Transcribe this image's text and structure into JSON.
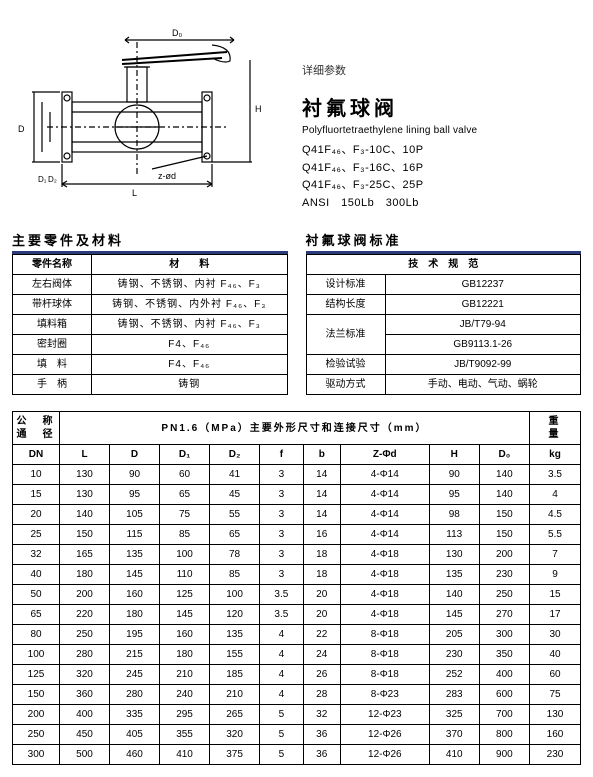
{
  "drawing": {
    "labels": {
      "D0": "D₀",
      "H": "H",
      "D": "D",
      "D1": "D₁",
      "D2": "D₂",
      "zphi": "z-ød",
      "L": "L"
    }
  },
  "header": {
    "detail_label": "详细参数",
    "title_cn": "衬氟球阀",
    "title_en": "Polyfluortetraethylene lining ball valve",
    "specs": [
      "Q41F₄₆、F₃-10C、10P",
      "Q41F₄₆、F₃-16C、16P",
      "Q41F₄₆、F₃-25C、25P",
      "ANSI　150Lb　300Lb"
    ]
  },
  "parts_section": {
    "title": "主要零件及材料",
    "head_name": "零件名称",
    "head_mat": "材　　料",
    "rows": [
      {
        "name": "左右阀体",
        "mat": "铸钢、不锈钢、内衬 F₄₆、F₃"
      },
      {
        "name": "带杆球体",
        "mat": "铸钢、不锈钢、内外衬 F₄₆、F₃"
      },
      {
        "name": "填料箱",
        "mat": "铸钢、不锈钢、内衬 F₄₆、F₃"
      },
      {
        "name": "密封圈",
        "mat": "F4、F₄₆"
      },
      {
        "name": "填　料",
        "mat": "F4、F₄₆"
      },
      {
        "name": "手　柄",
        "mat": "铸钢"
      }
    ]
  },
  "std_section": {
    "title": "衬氟球阀标准",
    "head_spec": "技　术　规　范",
    "rows": [
      {
        "k": "设计标准",
        "v": "GB12237"
      },
      {
        "k": "结构长度",
        "v": "GB12221"
      },
      {
        "k": "法兰标准",
        "v1": "JB/T79-94",
        "v2": "GB9113.1-26",
        "rowspan": 2
      },
      {
        "k": "检验试验",
        "v": "JB/T9092-99"
      },
      {
        "k": "驱动方式",
        "v": "手动、电动、气动、蜗轮"
      }
    ]
  },
  "dim_section": {
    "head_left": "公　称\n通　径",
    "head_mid": "PN1.6（MPa）主要外形尺寸和连接尺寸（mm）",
    "head_right": "重　　量",
    "cols": [
      "DN",
      "L",
      "D",
      "D₁",
      "D₂",
      "f",
      "b",
      "Z-Φd",
      "H",
      "D₀",
      "kg"
    ],
    "rows": [
      [
        "10",
        "130",
        "90",
        "60",
        "41",
        "3",
        "14",
        "4-Φ14",
        "90",
        "140",
        "3.5"
      ],
      [
        "15",
        "130",
        "95",
        "65",
        "45",
        "3",
        "14",
        "4-Φ14",
        "95",
        "140",
        "4"
      ],
      [
        "20",
        "140",
        "105",
        "75",
        "55",
        "3",
        "14",
        "4-Φ14",
        "98",
        "150",
        "4.5"
      ],
      [
        "25",
        "150",
        "115",
        "85",
        "65",
        "3",
        "16",
        "4-Φ14",
        "113",
        "150",
        "5.5"
      ],
      [
        "32",
        "165",
        "135",
        "100",
        "78",
        "3",
        "18",
        "4-Φ18",
        "130",
        "200",
        "7"
      ],
      [
        "40",
        "180",
        "145",
        "110",
        "85",
        "3",
        "18",
        "4-Φ18",
        "135",
        "230",
        "9"
      ],
      [
        "50",
        "200",
        "160",
        "125",
        "100",
        "3.5",
        "20",
        "4-Φ18",
        "140",
        "250",
        "15"
      ],
      [
        "65",
        "220",
        "180",
        "145",
        "120",
        "3.5",
        "20",
        "4-Φ18",
        "145",
        "270",
        "17"
      ],
      [
        "80",
        "250",
        "195",
        "160",
        "135",
        "4",
        "22",
        "8-Φ18",
        "205",
        "300",
        "30"
      ],
      [
        "100",
        "280",
        "215",
        "180",
        "155",
        "4",
        "24",
        "8-Φ18",
        "230",
        "350",
        "40"
      ],
      [
        "125",
        "320",
        "245",
        "210",
        "185",
        "4",
        "26",
        "8-Φ18",
        "252",
        "400",
        "60"
      ],
      [
        "150",
        "360",
        "280",
        "240",
        "210",
        "4",
        "28",
        "8-Φ23",
        "283",
        "600",
        "75"
      ],
      [
        "200",
        "400",
        "335",
        "295",
        "265",
        "5",
        "32",
        "12-Φ23",
        "325",
        "700",
        "130"
      ],
      [
        "250",
        "450",
        "405",
        "355",
        "320",
        "5",
        "36",
        "12-Φ26",
        "370",
        "800",
        "160"
      ],
      [
        "300",
        "500",
        "460",
        "410",
        "375",
        "5",
        "36",
        "12-Φ26",
        "410",
        "900",
        "230"
      ]
    ]
  }
}
